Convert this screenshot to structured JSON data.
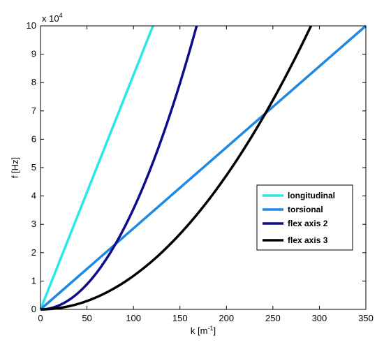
{
  "chart_data": {
    "type": "line",
    "title": "",
    "xlabel": "k [m",
    "xlabel_sup": "-1",
    "xlabel_close": "]",
    "ylabel": "f [Hz]",
    "y_exponent_base": "x 10",
    "y_exponent_power": "4",
    "xlim": [
      0,
      350
    ],
    "ylim": [
      0,
      100000
    ],
    "x_ticks": [
      0,
      50,
      100,
      150,
      200,
      250,
      300,
      350
    ],
    "x_tick_labels": [
      "0",
      "50",
      "100",
      "150",
      "200",
      "250",
      "300",
      "350"
    ],
    "y_ticks": [
      0,
      10000,
      20000,
      30000,
      40000,
      50000,
      60000,
      70000,
      80000,
      90000,
      100000
    ],
    "y_tick_labels": [
      "0",
      "1",
      "2",
      "3",
      "4",
      "5",
      "6",
      "7",
      "8",
      "9",
      "10"
    ],
    "grid": false,
    "legend_position": "center-right",
    "series": [
      {
        "name": "longitudinal",
        "color": "#2EE6E6",
        "kind": "linear",
        "x": [
          0,
          121
        ],
        "y": [
          0,
          100000
        ]
      },
      {
        "name": "torsional",
        "color": "#1E88E5",
        "kind": "linear",
        "x": [
          0,
          350
        ],
        "y": [
          0,
          100000
        ]
      },
      {
        "name": "flex axis 2",
        "color": "#0D0D8C",
        "kind": "quadratic",
        "x": [
          0,
          80,
          168
        ],
        "y": [
          0,
          22700,
          100000
        ]
      },
      {
        "name": "flex axis 3",
        "color": "#000000",
        "kind": "quadratic",
        "x": [
          0,
          240,
          291
        ],
        "y": [
          0,
          68000,
          100000
        ]
      }
    ]
  }
}
